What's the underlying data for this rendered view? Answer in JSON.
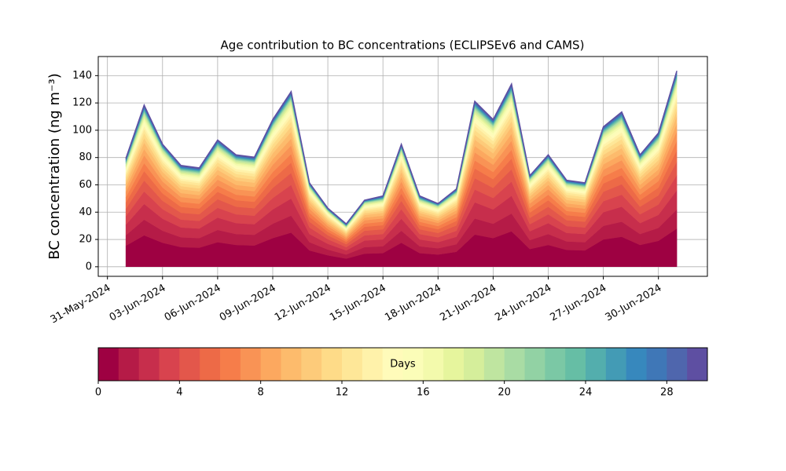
{
  "chart_data": {
    "type": "stacked_area",
    "title": "Age contribution to BC concentrations (ECLIPSEv6 and CAMS)",
    "y_label": "BC concentration (ng m⁻³)",
    "grid": true,
    "xlim": [
      "2024-05-30T12:00",
      "2024-07-02T16:00"
    ],
    "xticks": [
      {
        "value": "2024-05-31",
        "label": "31-May-2024"
      },
      {
        "value": "2024-06-03",
        "label": "03-Jun-2024"
      },
      {
        "value": "2024-06-06",
        "label": "06-Jun-2024"
      },
      {
        "value": "2024-06-09",
        "label": "09-Jun-2024"
      },
      {
        "value": "2024-06-12",
        "label": "12-Jun-2024"
      },
      {
        "value": "2024-06-15",
        "label": "15-Jun-2024"
      },
      {
        "value": "2024-06-18",
        "label": "18-Jun-2024"
      },
      {
        "value": "2024-06-21",
        "label": "21-Jun-2024"
      },
      {
        "value": "2024-06-24",
        "label": "24-Jun-2024"
      },
      {
        "value": "2024-06-27",
        "label": "27-Jun-2024"
      },
      {
        "value": "2024-06-30",
        "label": "30-Jun-2024"
      }
    ],
    "ylim": [
      -7,
      154
    ],
    "yticks": [
      0,
      20,
      40,
      60,
      80,
      100,
      120,
      140
    ],
    "x": [
      "2024-06-01",
      "2024-06-02",
      "2024-06-03",
      "2024-06-04",
      "2024-06-05",
      "2024-06-06",
      "2024-06-07",
      "2024-06-08",
      "2024-06-09",
      "2024-06-10",
      "2024-06-11",
      "2024-06-12",
      "2024-06-13",
      "2024-06-14",
      "2024-06-15",
      "2024-06-16",
      "2024-06-17",
      "2024-06-18",
      "2024-06-19",
      "2024-06-20",
      "2024-06-21",
      "2024-06-22",
      "2024-06-23",
      "2024-06-24",
      "2024-06-25",
      "2024-06-26",
      "2024-06-27",
      "2024-06-28",
      "2024-06-29",
      "2024-06-30",
      "2024-07-01"
    ],
    "series": [
      {
        "color": "#9e0142",
        "values": [
          15.4,
          23,
          17.6,
          14.4,
          14,
          18,
          16,
          15.6,
          21,
          25,
          12,
          8.4,
          6,
          9.6,
          10,
          17.6,
          10,
          9,
          11,
          23.6,
          21,
          26,
          13,
          16,
          12.4,
          12,
          20,
          22,
          16,
          19,
          28
        ]
      },
      {
        "color": "#b51b47",
        "values": [
          7.7,
          11.5,
          8.8,
          7.2,
          7,
          9,
          8,
          7.8,
          10.5,
          12.5,
          6,
          4.2,
          3,
          4.8,
          5,
          8.8,
          5,
          4.5,
          5.5,
          11.8,
          10.5,
          13,
          6.5,
          8,
          6.2,
          6,
          10,
          11,
          8,
          9.5,
          14
        ]
      },
      {
        "color": "#c72e4c",
        "values": [
          7.7,
          11.5,
          8.8,
          7.2,
          7,
          9,
          8,
          7.8,
          10.5,
          12.5,
          6,
          4.2,
          3,
          4.8,
          5,
          8.8,
          5,
          4.5,
          5.5,
          11.8,
          10.5,
          13,
          6.5,
          8,
          6.2,
          6,
          10,
          11,
          8,
          9.5,
          14
        ]
      },
      {
        "color": "#d8434e",
        "values": [
          6.2,
          9.2,
          7,
          5.8,
          5.6,
          7.2,
          6.4,
          6.2,
          8.4,
          10,
          4.8,
          3.4,
          2.4,
          3.8,
          4,
          7,
          4,
          3.6,
          4.4,
          9.4,
          8.4,
          10.4,
          5.2,
          6.4,
          5,
          4.8,
          8,
          8.8,
          6.4,
          7.6,
          11.2
        ]
      },
      {
        "color": "#e3574b",
        "values": [
          5.4,
          8,
          6.2,
          5,
          4.9,
          6.3,
          5.6,
          5.5,
          7.4,
          8.8,
          4.2,
          2.9,
          2.1,
          3.4,
          3.5,
          6.2,
          3.5,
          3.2,
          3.9,
          8.3,
          7.4,
          9.1,
          4.6,
          5.6,
          4.3,
          4.2,
          7,
          7.7,
          5.6,
          6.7,
          9.8
        ]
      },
      {
        "color": "#ed6a47",
        "values": [
          4.6,
          6.9,
          5.3,
          4.3,
          4.2,
          5.4,
          4.8,
          4.7,
          6.3,
          7.5,
          3.6,
          2.5,
          1.8,
          2.9,
          3,
          5.3,
          3,
          2.7,
          3.3,
          7.1,
          6.3,
          7.8,
          3.9,
          4.8,
          3.7,
          3.6,
          6,
          6.6,
          4.8,
          5.7,
          8.4
        ]
      },
      {
        "color": "#f67d4a",
        "values": [
          3.9,
          5.8,
          4.4,
          3.6,
          3.5,
          4.5,
          4,
          3.9,
          5.3,
          6.3,
          3,
          2.1,
          1.5,
          2.4,
          2.5,
          4.4,
          2.5,
          2.3,
          2.8,
          5.9,
          5.3,
          6.5,
          3.3,
          4,
          3.1,
          3,
          5,
          5.5,
          4,
          4.8,
          7
        ]
      },
      {
        "color": "#f99355",
        "values": [
          3.9,
          5.8,
          4.4,
          3.6,
          3.5,
          4.5,
          4,
          3.9,
          5.3,
          6.3,
          3,
          2.1,
          1.5,
          2.4,
          2.5,
          4.4,
          2.5,
          2.3,
          2.8,
          5.9,
          5.3,
          6.5,
          3.3,
          4,
          3.1,
          3,
          5,
          5.5,
          4,
          4.8,
          7
        ]
      },
      {
        "color": "#fca85f",
        "values": [
          3.1,
          4.6,
          3.5,
          2.9,
          2.8,
          3.6,
          3.2,
          3.1,
          4.2,
          5,
          2.4,
          1.7,
          1.2,
          1.9,
          2,
          3.5,
          2,
          1.8,
          2.2,
          4.7,
          4.2,
          5.2,
          2.6,
          3.2,
          2.5,
          2.4,
          4,
          4.4,
          3.2,
          3.8,
          5.6
        ]
      },
      {
        "color": "#fdbb6c",
        "values": [
          3.1,
          4.6,
          3.5,
          2.9,
          2.8,
          3.6,
          3.2,
          3.1,
          4.2,
          5,
          2.4,
          1.7,
          1.2,
          1.9,
          2,
          3.5,
          2,
          1.8,
          2.2,
          4.7,
          4.2,
          5.2,
          2.6,
          3.2,
          2.5,
          2.4,
          4,
          4.4,
          3.2,
          3.8,
          5.6
        ]
      },
      {
        "color": "#fdcb7a",
        "values": [
          2.3,
          3.5,
          2.6,
          2.2,
          2.1,
          2.7,
          2.4,
          2.3,
          3.2,
          3.8,
          1.8,
          1.3,
          0.9,
          1.4,
          1.5,
          2.6,
          1.5,
          1.4,
          1.7,
          3.5,
          3.2,
          3.9,
          2,
          2.4,
          1.9,
          1.8,
          3,
          3.3,
          2.4,
          2.9,
          4.2
        ]
      },
      {
        "color": "#fedb88",
        "values": [
          2.3,
          3.5,
          2.6,
          2.2,
          2.1,
          2.7,
          2.4,
          2.3,
          3.2,
          3.8,
          1.8,
          1.3,
          0.9,
          1.4,
          1.5,
          2.6,
          1.5,
          1.4,
          1.7,
          3.5,
          3.2,
          3.9,
          2,
          2.4,
          1.9,
          1.8,
          3,
          3.3,
          2.4,
          2.9,
          4.2
        ]
      },
      {
        "color": "#fee798",
        "values": [
          1.9,
          2.9,
          2.2,
          1.8,
          1.8,
          2.3,
          2,
          2,
          2.6,
          3.1,
          1.5,
          1.1,
          0.8,
          1.2,
          1.3,
          2.2,
          1.3,
          1.1,
          1.4,
          3,
          2.6,
          3.3,
          1.6,
          2,
          1.6,
          1.5,
          2.5,
          2.8,
          2,
          2.4,
          3.5
        ]
      },
      {
        "color": "#fff2aa",
        "values": [
          1.5,
          2.3,
          1.8,
          1.4,
          1.4,
          1.8,
          1.6,
          1.6,
          2.1,
          2.5,
          1.2,
          0.8,
          0.6,
          1,
          1,
          1.8,
          1,
          0.9,
          1.1,
          2.4,
          2.1,
          2.6,
          1.3,
          1.6,
          1.2,
          1.2,
          2,
          2.2,
          1.6,
          1.9,
          2.8
        ]
      },
      {
        "color": "#fffbba",
        "values": [
          1.5,
          2.3,
          1.8,
          1.4,
          1.4,
          1.8,
          1.6,
          1.6,
          2.1,
          2.5,
          1.2,
          0.8,
          0.6,
          1,
          1,
          1.8,
          1,
          0.9,
          1.1,
          2.4,
          2.1,
          2.6,
          1.3,
          1.6,
          1.2,
          1.2,
          2,
          2.2,
          1.6,
          1.9,
          2.8
        ]
      },
      {
        "color": "#fbfdb8",
        "values": [
          1.2,
          1.7,
          1.3,
          1.1,
          1.1,
          1.4,
          1.2,
          1.2,
          1.6,
          1.9,
          0.9,
          0.6,
          0.5,
          0.7,
          0.8,
          1.3,
          0.8,
          0.7,
          0.8,
          1.8,
          1.6,
          2,
          1,
          1.2,
          0.9,
          0.9,
          1.5,
          1.7,
          1.2,
          1.4,
          2.1
        ]
      },
      {
        "color": "#f3faac",
        "values": [
          1.2,
          1.7,
          1.3,
          1.1,
          1.1,
          1.4,
          1.2,
          1.2,
          1.6,
          1.9,
          0.9,
          0.6,
          0.5,
          0.7,
          0.8,
          1.3,
          0.8,
          0.7,
          0.8,
          1.8,
          1.6,
          2,
          1,
          1.2,
          0.9,
          0.9,
          1.5,
          1.7,
          1.2,
          1.4,
          2.1
        ]
      },
      {
        "color": "#e6f59d",
        "values": [
          0.8,
          1.2,
          0.9,
          0.7,
          0.7,
          0.9,
          0.8,
          0.8,
          1.1,
          1.3,
          0.6,
          0.4,
          0.3,
          0.5,
          0.5,
          0.9,
          0.5,
          0.5,
          0.6,
          1.2,
          1.1,
          1.3,
          0.7,
          0.8,
          0.6,
          0.6,
          1,
          1.1,
          0.8,
          1,
          1.4
        ]
      },
      {
        "color": "#d5ee9b",
        "values": [
          0.8,
          1.2,
          0.9,
          0.7,
          0.7,
          0.9,
          0.8,
          0.8,
          1.1,
          1.3,
          0.6,
          0.4,
          0.3,
          0.5,
          0.5,
          0.9,
          0.5,
          0.5,
          0.6,
          1.2,
          1.1,
          1.3,
          0.7,
          0.8,
          0.6,
          0.6,
          1,
          1.1,
          0.8,
          1,
          1.4
        ]
      },
      {
        "color": "#bfe5a0",
        "values": [
          0.8,
          1.2,
          0.9,
          0.7,
          0.7,
          0.9,
          0.8,
          0.8,
          1.1,
          1.3,
          0.6,
          0.4,
          0.3,
          0.5,
          0.5,
          0.9,
          0.5,
          0.5,
          0.6,
          1.2,
          1.1,
          1.3,
          0.7,
          0.8,
          0.6,
          0.6,
          1,
          1.1,
          0.8,
          1,
          1.4
        ]
      },
      {
        "color": "#a9dca4",
        "values": [
          0.4,
          0.6,
          0.4,
          0.4,
          0.4,
          0.5,
          0.4,
          0.4,
          0.5,
          0.6,
          0.3,
          0.2,
          0.2,
          0.2,
          0.3,
          0.4,
          0.3,
          0.2,
          0.3,
          0.6,
          0.5,
          0.7,
          0.3,
          0.4,
          0.3,
          0.3,
          0.5,
          0.6,
          0.4,
          0.5,
          0.7
        ]
      },
      {
        "color": "#92d2a4",
        "values": [
          0.4,
          0.6,
          0.4,
          0.4,
          0.4,
          0.5,
          0.4,
          0.4,
          0.5,
          0.6,
          0.3,
          0.2,
          0.2,
          0.2,
          0.3,
          0.4,
          0.3,
          0.2,
          0.3,
          0.6,
          0.5,
          0.7,
          0.3,
          0.4,
          0.3,
          0.3,
          0.5,
          0.6,
          0.4,
          0.5,
          0.7
        ]
      },
      {
        "color": "#7bc8a5",
        "values": [
          0.4,
          0.6,
          0.4,
          0.4,
          0.4,
          0.5,
          0.4,
          0.4,
          0.5,
          0.6,
          0.3,
          0.2,
          0.2,
          0.2,
          0.3,
          0.4,
          0.3,
          0.2,
          0.3,
          0.6,
          0.5,
          0.7,
          0.3,
          0.4,
          0.3,
          0.3,
          0.5,
          0.6,
          0.4,
          0.5,
          0.7
        ]
      },
      {
        "color": "#66bea5",
        "values": [
          0.4,
          0.6,
          0.4,
          0.4,
          0.4,
          0.5,
          0.4,
          0.4,
          0.5,
          0.6,
          0.3,
          0.2,
          0.2,
          0.2,
          0.3,
          0.4,
          0.3,
          0.2,
          0.3,
          0.6,
          0.5,
          0.7,
          0.3,
          0.4,
          0.3,
          0.3,
          0.5,
          0.6,
          0.4,
          0.5,
          0.7
        ]
      },
      {
        "color": "#53aead",
        "values": [
          0.4,
          0.6,
          0.4,
          0.4,
          0.4,
          0.5,
          0.4,
          0.4,
          0.5,
          0.6,
          0.3,
          0.2,
          0.2,
          0.2,
          0.3,
          0.4,
          0.3,
          0.2,
          0.3,
          0.6,
          0.5,
          0.7,
          0.3,
          0.4,
          0.3,
          0.3,
          0.5,
          0.6,
          0.4,
          0.5,
          0.7
        ]
      },
      {
        "color": "#439bb5",
        "values": [
          0.4,
          0.6,
          0.4,
          0.4,
          0.4,
          0.5,
          0.4,
          0.4,
          0.5,
          0.6,
          0.3,
          0.2,
          0.2,
          0.2,
          0.3,
          0.4,
          0.3,
          0.2,
          0.3,
          0.6,
          0.5,
          0.7,
          0.3,
          0.4,
          0.3,
          0.3,
          0.5,
          0.6,
          0.4,
          0.5,
          0.7
        ]
      },
      {
        "color": "#3788bd",
        "values": [
          0.4,
          0.6,
          0.4,
          0.4,
          0.4,
          0.5,
          0.4,
          0.4,
          0.5,
          0.6,
          0.3,
          0.2,
          0.2,
          0.2,
          0.3,
          0.4,
          0.3,
          0.2,
          0.3,
          0.6,
          0.5,
          0.7,
          0.3,
          0.4,
          0.3,
          0.3,
          0.5,
          0.6,
          0.4,
          0.5,
          0.7
        ]
      },
      {
        "color": "#3f77b7",
        "values": [
          0.4,
          0.6,
          0.4,
          0.4,
          0.4,
          0.5,
          0.4,
          0.4,
          0.5,
          0.6,
          0.3,
          0.2,
          0.2,
          0.2,
          0.3,
          0.4,
          0.3,
          0.2,
          0.3,
          0.6,
          0.5,
          0.7,
          0.3,
          0.4,
          0.3,
          0.3,
          0.5,
          0.6,
          0.4,
          0.5,
          0.7
        ]
      },
      {
        "color": "#4f66ad",
        "values": [
          0.4,
          0.6,
          0.4,
          0.4,
          0.4,
          0.5,
          0.4,
          0.4,
          0.5,
          0.6,
          0.3,
          0.2,
          0.2,
          0.2,
          0.3,
          0.4,
          0.3,
          0.2,
          0.3,
          0.6,
          0.5,
          0.7,
          0.3,
          0.4,
          0.3,
          0.3,
          0.5,
          0.6,
          0.4,
          0.5,
          0.7
        ]
      },
      {
        "color": "#5e4fa2",
        "values": [
          0.4,
          0.6,
          0.4,
          0.4,
          0.4,
          0.5,
          0.4,
          0.4,
          0.5,
          0.6,
          0.3,
          0.2,
          0.2,
          0.2,
          0.3,
          0.4,
          0.3,
          0.2,
          0.3,
          0.6,
          0.5,
          0.7,
          0.3,
          0.4,
          0.3,
          0.3,
          0.5,
          0.6,
          0.4,
          0.5,
          0.7
        ]
      }
    ],
    "colorbar": {
      "label": "Days",
      "lim": [
        0,
        30
      ],
      "ticks": [
        0,
        4,
        8,
        12,
        16,
        20,
        24,
        28
      ]
    }
  }
}
